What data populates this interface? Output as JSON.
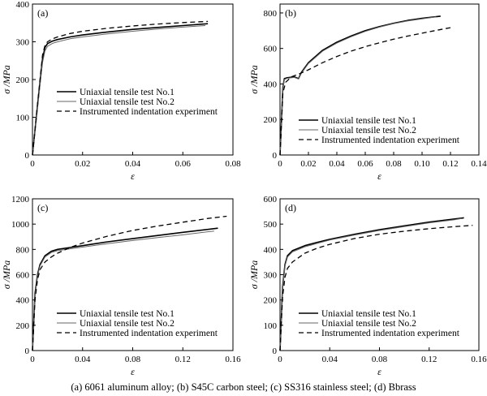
{
  "caption": "(a) 6061 aluminum alloy; (b) S45C carbon steel; (c) SS316 stainless steel; (d) Bbrass",
  "chart_data": [
    {
      "type": "line",
      "panel": "(a)",
      "xlabel": "ε",
      "ylabel": "σ /MPa",
      "xlim": [
        0,
        0.08
      ],
      "ylim": [
        0,
        400
      ],
      "xticks": [
        "0",
        "0.02",
        "0.04",
        "0.06",
        "0.08"
      ],
      "yticks": [
        "0",
        "100",
        "200",
        "300",
        "400"
      ],
      "legend": "center-right",
      "series": [
        {
          "name": "Uniaxial tensile test No.1",
          "style": "solid",
          "x": [
            0,
            0.002,
            0.004,
            0.005,
            0.006,
            0.008,
            0.01,
            0.015,
            0.02,
            0.03,
            0.04,
            0.05,
            0.06,
            0.07
          ],
          "y": [
            0,
            130,
            255,
            285,
            295,
            302,
            306,
            313,
            318,
            326,
            333,
            338,
            343,
            348
          ]
        },
        {
          "name": "Uniaxial tensile test No.2",
          "style": "thin",
          "x": [
            0,
            0.002,
            0.004,
            0.005,
            0.006,
            0.008,
            0.01,
            0.015,
            0.02,
            0.03,
            0.04,
            0.05,
            0.06,
            0.069
          ],
          "y": [
            0,
            125,
            245,
            276,
            288,
            296,
            300,
            308,
            313,
            321,
            328,
            334,
            339,
            343
          ]
        },
        {
          "name": "Instrumented indentation experiment",
          "style": "dashed",
          "x": [
            0,
            0.002,
            0.004,
            0.005,
            0.006,
            0.008,
            0.01,
            0.015,
            0.02,
            0.03,
            0.04,
            0.05,
            0.06,
            0.07
          ],
          "y": [
            0,
            135,
            265,
            290,
            300,
            308,
            313,
            322,
            328,
            336,
            342,
            347,
            351,
            354
          ]
        }
      ]
    },
    {
      "type": "line",
      "panel": "(b)",
      "xlabel": "ε",
      "ylabel": "σ /MPa",
      "xlim": [
        0,
        0.14
      ],
      "ylim": [
        0,
        850
      ],
      "xticks": [
        "0",
        "0.02",
        "0.04",
        "0.06",
        "0.08",
        "0.10",
        "0.12",
        "0.14"
      ],
      "yticks": [
        "0",
        "200",
        "400",
        "600",
        "800"
      ],
      "legend": "lower-right",
      "series": [
        {
          "name": "Uniaxial tensile test No.1",
          "style": "solid",
          "x": [
            0,
            0.002,
            0.003,
            0.005,
            0.01,
            0.013,
            0.015,
            0.02,
            0.03,
            0.04,
            0.05,
            0.06,
            0.07,
            0.08,
            0.09,
            0.1,
            0.113
          ],
          "y": [
            0,
            380,
            430,
            435,
            440,
            430,
            465,
            520,
            590,
            635,
            670,
            700,
            723,
            742,
            758,
            770,
            782
          ]
        },
        {
          "name": "Uniaxial tensile test No.2",
          "style": "thin",
          "x": [
            0,
            0.002,
            0.003,
            0.005,
            0.01,
            0.013,
            0.015,
            0.02,
            0.03,
            0.04,
            0.05,
            0.06,
            0.07,
            0.08,
            0.09,
            0.1,
            0.11
          ],
          "y": [
            0,
            375,
            425,
            432,
            437,
            428,
            460,
            515,
            585,
            630,
            666,
            696,
            720,
            740,
            755,
            767,
            778
          ]
        },
        {
          "name": "Instrumented indentation experiment",
          "style": "dashed",
          "x": [
            0,
            0.002,
            0.004,
            0.008,
            0.013,
            0.02,
            0.03,
            0.04,
            0.05,
            0.06,
            0.07,
            0.08,
            0.09,
            0.1,
            0.11,
            0.12
          ],
          "y": [
            0,
            350,
            410,
            440,
            455,
            480,
            520,
            555,
            585,
            610,
            632,
            652,
            670,
            686,
            702,
            717
          ]
        }
      ]
    },
    {
      "type": "line",
      "panel": "(c)",
      "xlabel": "ε",
      "ylabel": "σ /MPa",
      "xlim": [
        0,
        0.16
      ],
      "ylim": [
        0,
        1200
      ],
      "xticks": [
        "0",
        "0.04",
        "0.08",
        "0.12",
        "0.16"
      ],
      "yticks": [
        "0",
        "200",
        "400",
        "600",
        "800",
        "1000",
        "1200"
      ],
      "legend": "lower-right",
      "series": [
        {
          "name": "Uniaxial tensile test No.1",
          "style": "solid",
          "x": [
            0,
            0.002,
            0.004,
            0.006,
            0.01,
            0.015,
            0.02,
            0.03,
            0.04,
            0.06,
            0.08,
            0.1,
            0.12,
            0.148
          ],
          "y": [
            0,
            450,
            600,
            680,
            750,
            785,
            800,
            815,
            830,
            860,
            885,
            910,
            935,
            968
          ]
        },
        {
          "name": "Uniaxial tensile test No.2",
          "style": "thin",
          "x": [
            0,
            0.002,
            0.004,
            0.006,
            0.01,
            0.015,
            0.02,
            0.03,
            0.04,
            0.06,
            0.08,
            0.1,
            0.12,
            0.145
          ],
          "y": [
            0,
            440,
            590,
            670,
            740,
            775,
            790,
            805,
            818,
            845,
            870,
            893,
            915,
            945
          ]
        },
        {
          "name": "Instrumented indentation experiment",
          "style": "dashed",
          "x": [
            0,
            0.002,
            0.004,
            0.006,
            0.01,
            0.015,
            0.02,
            0.03,
            0.04,
            0.06,
            0.08,
            0.1,
            0.12,
            0.14,
            0.155
          ],
          "y": [
            0,
            400,
            560,
            640,
            700,
            740,
            770,
            815,
            850,
            905,
            950,
            985,
            1015,
            1045,
            1062
          ]
        }
      ]
    },
    {
      "type": "line",
      "panel": "(d)",
      "xlabel": "ε",
      "ylabel": "σ /MPa",
      "xlim": [
        0,
        0.16
      ],
      "ylim": [
        0,
        600
      ],
      "xticks": [
        "0",
        "0.04",
        "0.08",
        "0.12",
        "0.16"
      ],
      "yticks": [
        "0",
        "100",
        "200",
        "300",
        "400",
        "500",
        "600"
      ],
      "legend": "lower-right",
      "series": [
        {
          "name": "Uniaxial tensile test No.1",
          "style": "solid",
          "x": [
            0,
            0.002,
            0.004,
            0.006,
            0.01,
            0.02,
            0.03,
            0.04,
            0.06,
            0.08,
            0.1,
            0.12,
            0.14,
            0.148
          ],
          "y": [
            0,
            250,
            340,
            375,
            395,
            415,
            428,
            440,
            460,
            478,
            493,
            508,
            520,
            525
          ]
        },
        {
          "name": "Uniaxial tensile test No.2",
          "style": "thin",
          "x": [
            0,
            0.002,
            0.004,
            0.006,
            0.01,
            0.02,
            0.03,
            0.04,
            0.06,
            0.08,
            0.1,
            0.12,
            0.14,
            0.146
          ],
          "y": [
            0,
            245,
            335,
            370,
            390,
            410,
            424,
            437,
            457,
            475,
            490,
            505,
            517,
            522
          ]
        },
        {
          "name": "Instrumented indentation experiment",
          "style": "dashed",
          "x": [
            0,
            0.002,
            0.004,
            0.006,
            0.01,
            0.02,
            0.03,
            0.04,
            0.06,
            0.08,
            0.1,
            0.12,
            0.14,
            0.155
          ],
          "y": [
            0,
            210,
            290,
            325,
            350,
            385,
            405,
            420,
            443,
            460,
            472,
            482,
            490,
            495
          ]
        }
      ]
    }
  ]
}
